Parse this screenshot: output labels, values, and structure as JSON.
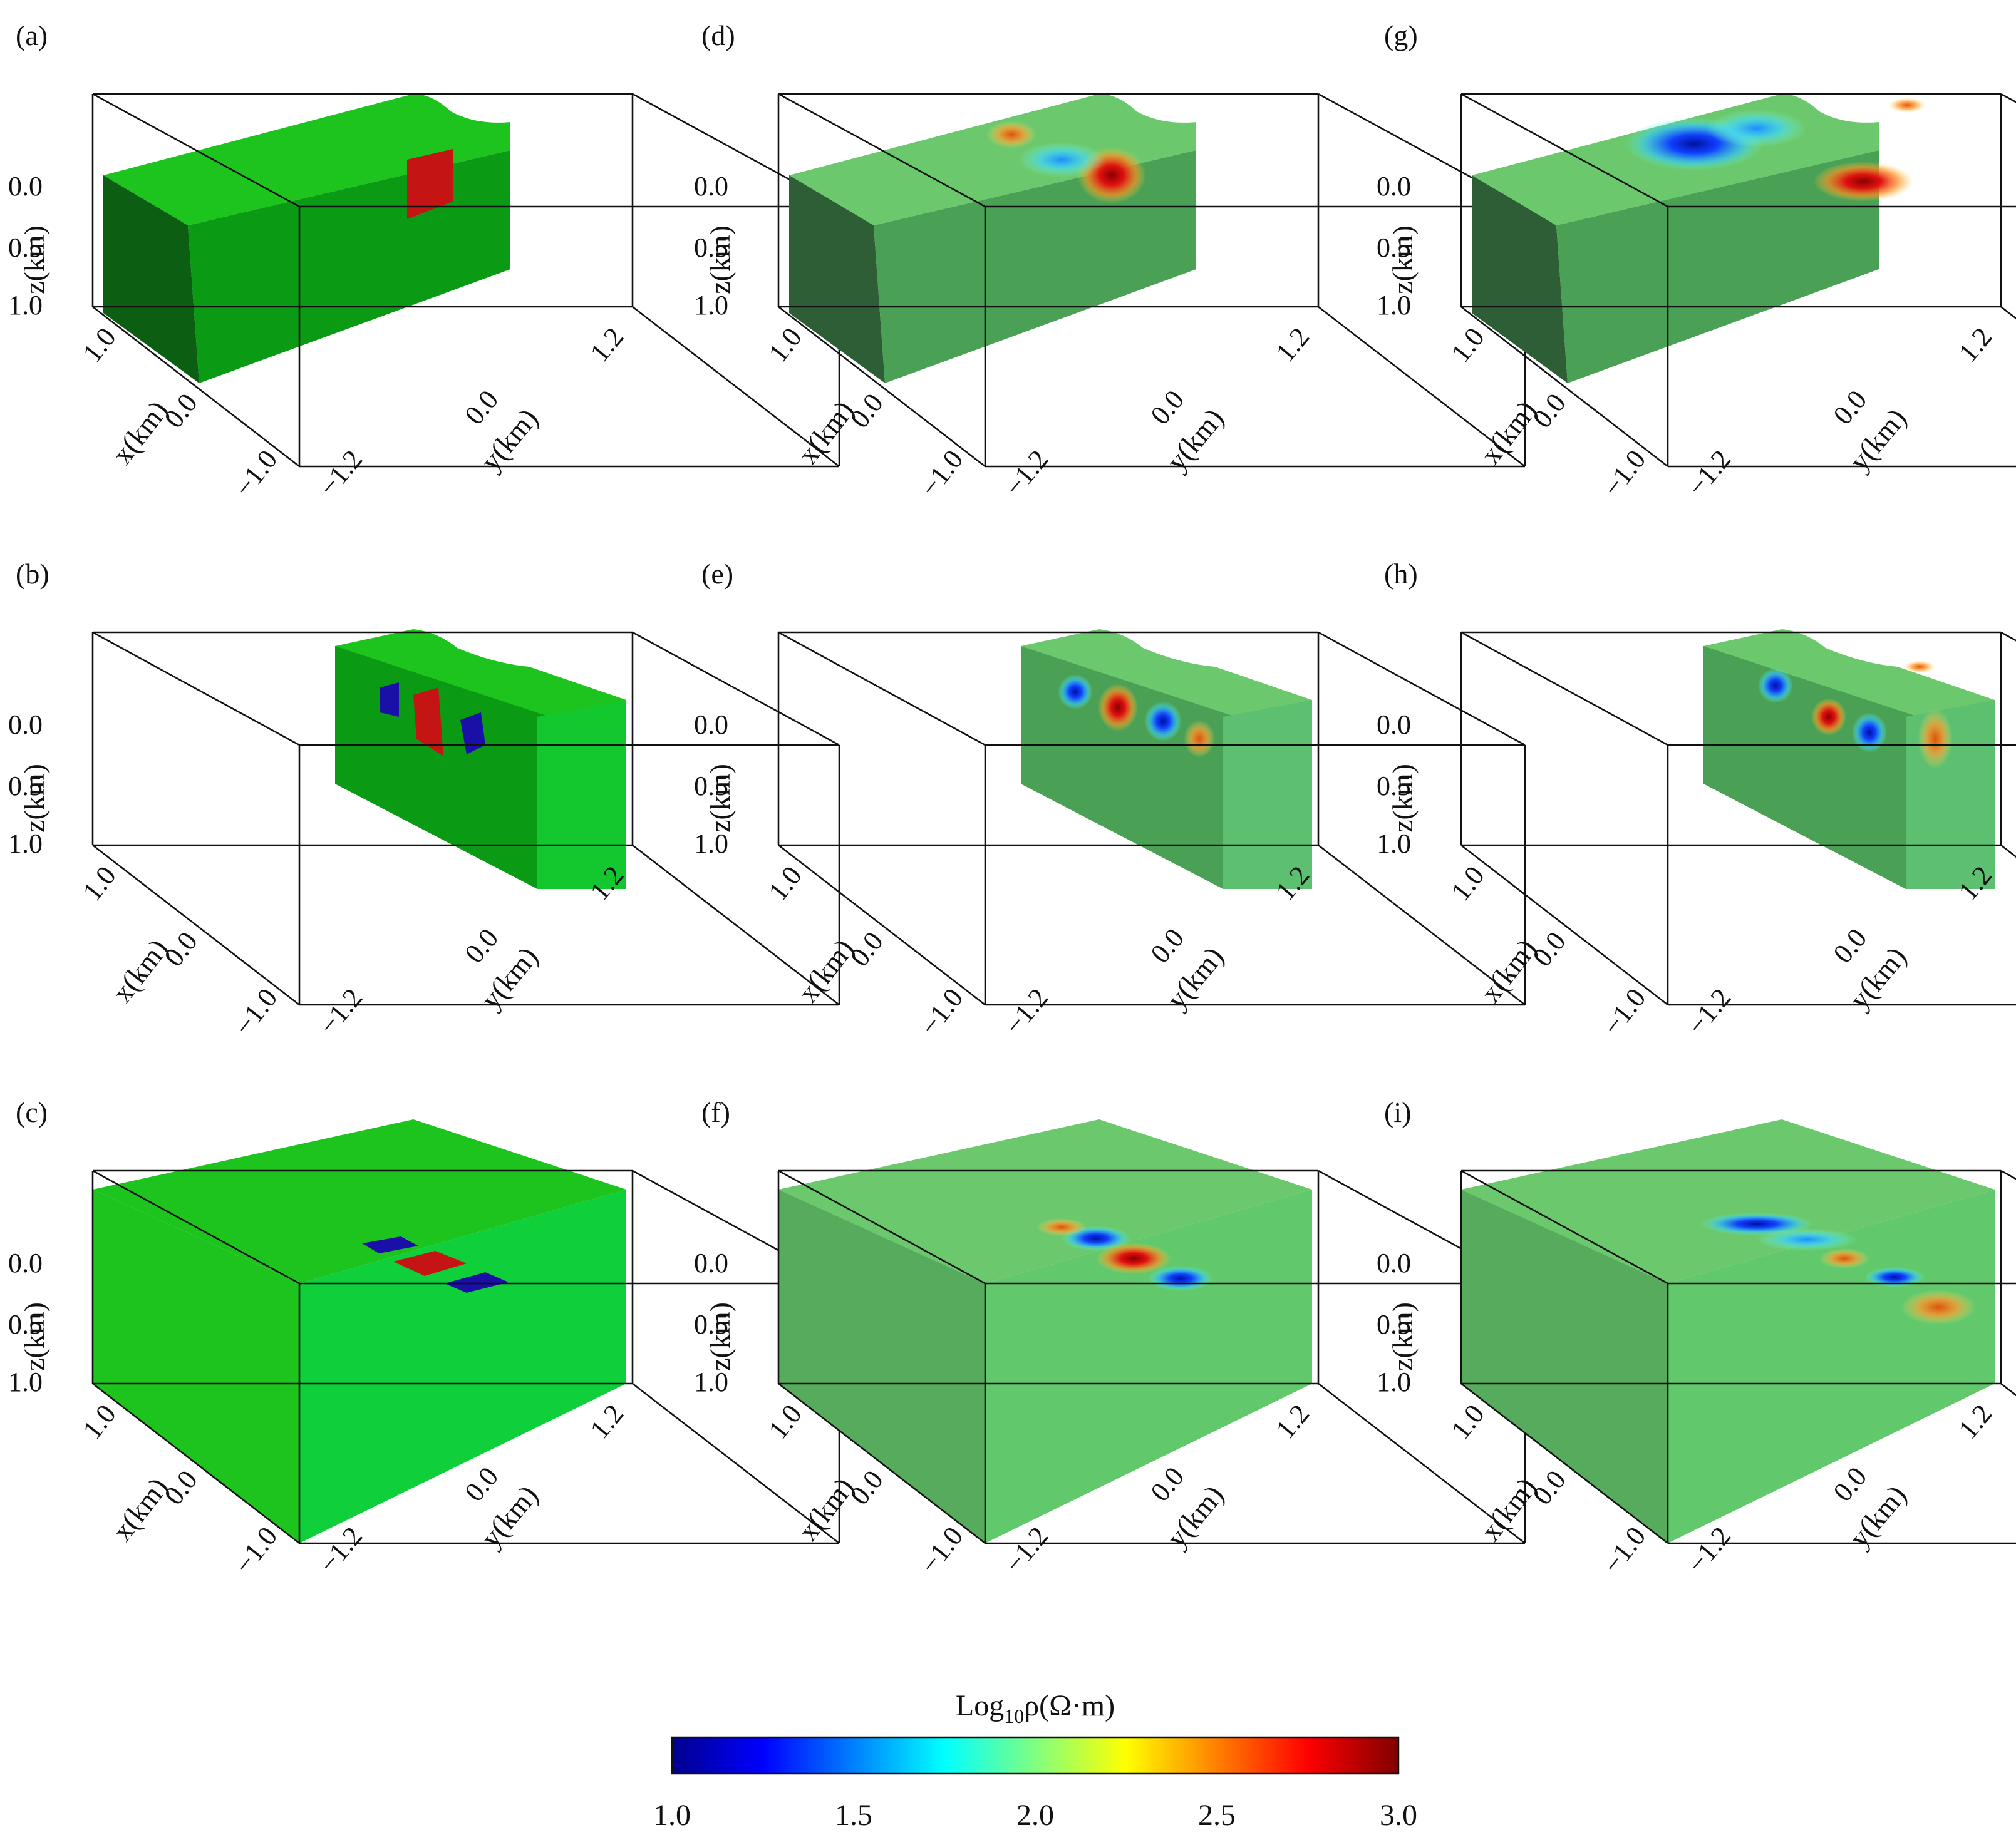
{
  "panels": [
    {
      "label": "(a)",
      "kind": "true-model",
      "slice": "full-x-sheet"
    },
    {
      "label": "(b)",
      "kind": "true-model",
      "slice": "half-block"
    },
    {
      "label": "(c)",
      "kind": "true-model",
      "slice": "flat-top"
    },
    {
      "label": "(d)",
      "kind": "inversion-1",
      "slice": "full-x-sheet"
    },
    {
      "label": "(e)",
      "kind": "inversion-1",
      "slice": "half-block"
    },
    {
      "label": "(f)",
      "kind": "inversion-1",
      "slice": "flat-top"
    },
    {
      "label": "(g)",
      "kind": "inversion-2",
      "slice": "full-x-sheet"
    },
    {
      "label": "(h)",
      "kind": "inversion-2",
      "slice": "half-block"
    },
    {
      "label": "(i)",
      "kind": "inversion-2",
      "slice": "flat-top"
    }
  ],
  "axes": {
    "z_label": "z(km)",
    "x_label": "x(km)",
    "y_label": "y(km)",
    "z_ticks": [
      "0.0",
      "0.5",
      "1.0"
    ],
    "x_ticks": [
      "1.0",
      "0.0",
      "−1.0"
    ],
    "y_ticks": [
      "−1.2",
      "0.0",
      "1.2"
    ]
  },
  "colorbar": {
    "title_main": "Log",
    "title_sub": "10",
    "title_rest": "ρ(Ω·m)",
    "ticks": [
      "1.0",
      "1.5",
      "2.0",
      "2.5",
      "3.0"
    ],
    "stops": [
      "#00008f",
      "#0000ff",
      "#0080ff",
      "#00ffff",
      "#80ff80",
      "#ffff00",
      "#ff8000",
      "#ff0000",
      "#800000"
    ]
  },
  "colors": {
    "model_green": "#1ec41e",
    "model_green_dark": "#0a9a14",
    "model_green_side": "#0b5e12",
    "conductor": "#1a10a8",
    "resistor": "#c41414",
    "inv_green": "#5fc96a",
    "inv_green_dark": "#4aa054",
    "inv_green_side": "#2e5e35"
  }
}
